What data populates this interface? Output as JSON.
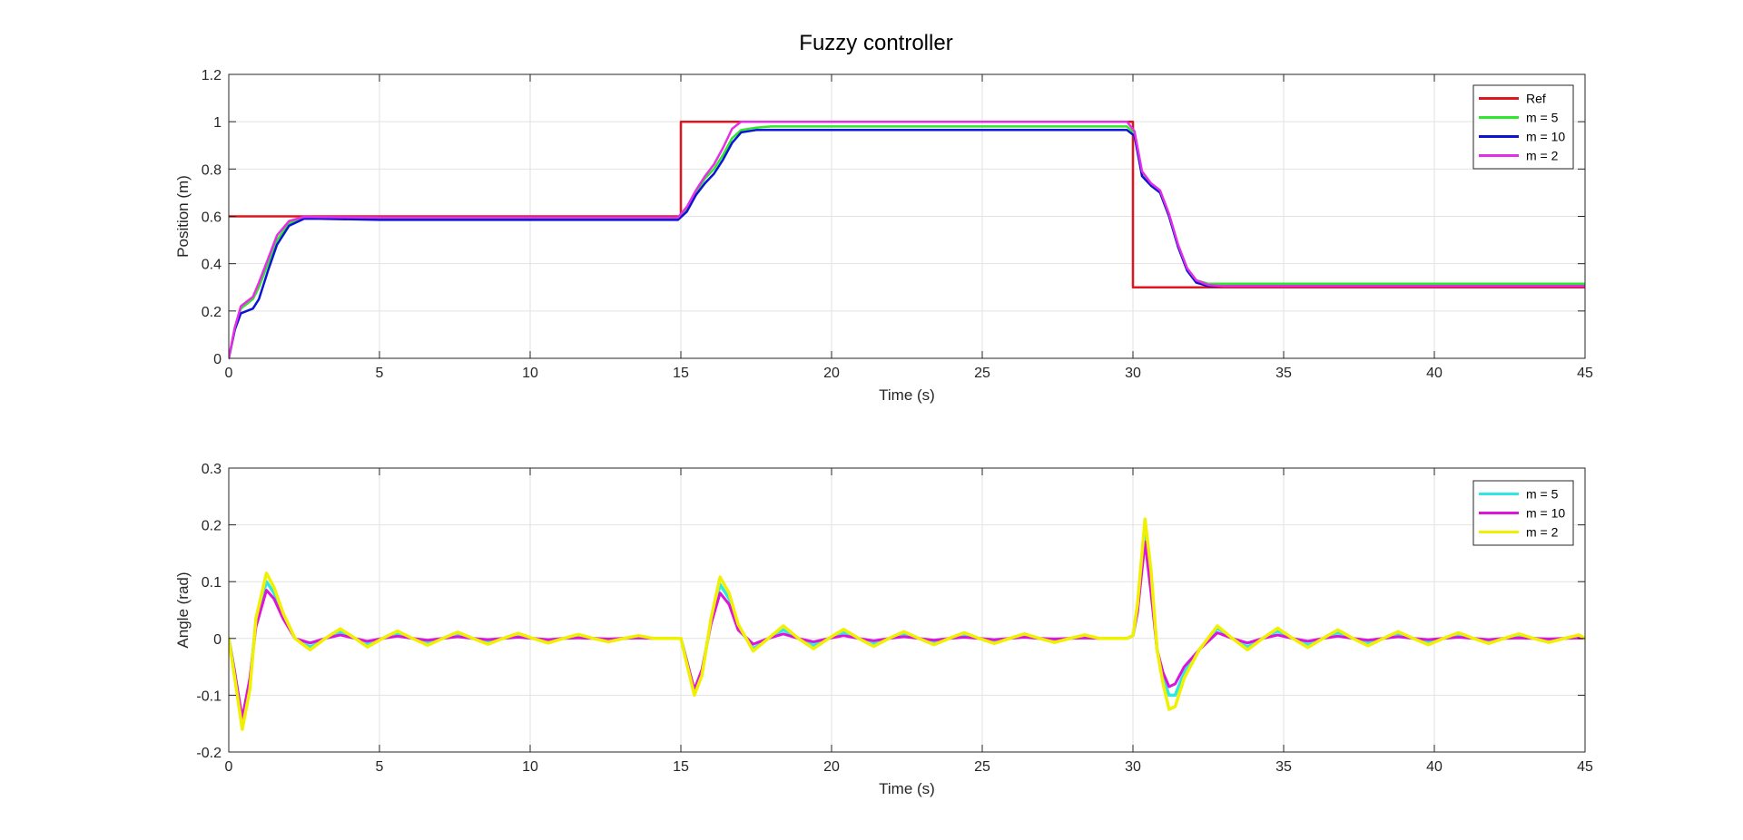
{
  "figure": {
    "title": "Fuzzy controller"
  },
  "chart_data": [
    {
      "type": "line",
      "title": "Fuzzy controller",
      "xlabel": "Time (s)",
      "ylabel": "Position (m)",
      "xlim": [
        0,
        45
      ],
      "ylim": [
        0,
        1.2
      ],
      "xticks": [
        0,
        5,
        10,
        15,
        20,
        25,
        30,
        35,
        40,
        45
      ],
      "yticks": [
        0,
        0.2,
        0.4,
        0.6,
        0.8,
        1,
        1.2
      ],
      "xtick_labels": [
        "0",
        "5",
        "10",
        "15",
        "20",
        "25",
        "30",
        "35",
        "40",
        "45"
      ],
      "ytick_labels": [
        "0",
        "0.2",
        "0.4",
        "0.6",
        "0.8",
        "1",
        "1.2"
      ],
      "grid": true,
      "legend_position": "top-right",
      "series": [
        {
          "name": "Ref",
          "color": "#e0161e",
          "x": [
            0,
            15,
            15,
            30,
            30,
            45
          ],
          "y": [
            0.6,
            0.6,
            1.0,
            1.0,
            0.3,
            0.3
          ]
        },
        {
          "name": "m = 5",
          "color": "#2ee82e",
          "x": [
            0,
            0.2,
            0.4,
            0.6,
            0.8,
            1.0,
            1.3,
            1.6,
            2.0,
            2.5,
            3,
            5,
            10,
            14.9,
            15.2,
            15.5,
            15.8,
            16.1,
            16.4,
            16.7,
            17,
            17.5,
            18,
            20,
            25,
            29.8,
            30.05,
            30.3,
            30.6,
            30.9,
            31.2,
            31.5,
            31.8,
            32.1,
            32.5,
            33,
            35,
            40,
            45
          ],
          "y": [
            0.0,
            0.12,
            0.21,
            0.23,
            0.25,
            0.3,
            0.4,
            0.5,
            0.57,
            0.595,
            0.593,
            0.59,
            0.59,
            0.59,
            0.63,
            0.7,
            0.76,
            0.8,
            0.86,
            0.93,
            0.965,
            0.975,
            0.98,
            0.98,
            0.98,
            0.98,
            0.95,
            0.78,
            0.73,
            0.7,
            0.6,
            0.47,
            0.38,
            0.33,
            0.315,
            0.315,
            0.315,
            0.315,
            0.315
          ]
        },
        {
          "name": "m = 10",
          "color": "#0a14d2",
          "x": [
            0,
            0.2,
            0.4,
            0.6,
            0.8,
            1.0,
            1.3,
            1.6,
            2.0,
            2.5,
            3,
            5,
            10,
            14.9,
            15.2,
            15.5,
            15.8,
            16.1,
            16.4,
            16.7,
            17,
            17.5,
            18,
            20,
            25,
            29.8,
            30.05,
            30.3,
            30.6,
            30.9,
            31.2,
            31.5,
            31.8,
            32.1,
            32.5,
            33,
            35,
            40,
            45
          ],
          "y": [
            0.0,
            0.12,
            0.19,
            0.2,
            0.21,
            0.25,
            0.37,
            0.48,
            0.56,
            0.59,
            0.59,
            0.585,
            0.585,
            0.585,
            0.62,
            0.69,
            0.74,
            0.78,
            0.84,
            0.91,
            0.955,
            0.965,
            0.965,
            0.965,
            0.965,
            0.965,
            0.94,
            0.77,
            0.73,
            0.7,
            0.6,
            0.47,
            0.37,
            0.32,
            0.305,
            0.305,
            0.305,
            0.305,
            0.305
          ]
        },
        {
          "name": "m = 2",
          "color": "#e62ee6",
          "x": [
            0,
            0.2,
            0.4,
            0.6,
            0.8,
            1.0,
            1.3,
            1.6,
            2.0,
            2.5,
            3,
            5,
            10,
            14.9,
            15.2,
            15.5,
            15.8,
            16.1,
            16.4,
            16.7,
            17,
            17.5,
            18,
            20,
            25,
            29.8,
            30.05,
            30.3,
            30.6,
            30.9,
            31.2,
            31.5,
            31.8,
            32.1,
            32.5,
            33,
            35,
            40,
            45
          ],
          "y": [
            0.0,
            0.13,
            0.22,
            0.24,
            0.26,
            0.32,
            0.42,
            0.52,
            0.58,
            0.598,
            0.597,
            0.595,
            0.595,
            0.595,
            0.64,
            0.71,
            0.77,
            0.82,
            0.89,
            0.97,
            1.0,
            1.0,
            1.0,
            1.0,
            1.0,
            1.0,
            0.96,
            0.79,
            0.74,
            0.71,
            0.61,
            0.48,
            0.38,
            0.33,
            0.31,
            0.305,
            0.305,
            0.305,
            0.305
          ]
        }
      ]
    },
    {
      "type": "line",
      "xlabel": "Time (s)",
      "ylabel": "Angle (rad)",
      "xlim": [
        0,
        45
      ],
      "ylim": [
        -0.2,
        0.3
      ],
      "xticks": [
        0,
        5,
        10,
        15,
        20,
        25,
        30,
        35,
        40,
        45
      ],
      "yticks": [
        -0.2,
        -0.1,
        0,
        0.1,
        0.2,
        0.3
      ],
      "xtick_labels": [
        "0",
        "5",
        "10",
        "15",
        "20",
        "25",
        "30",
        "35",
        "40",
        "45"
      ],
      "ytick_labels": [
        "-0.2",
        "-0.1",
        "0",
        "0.1",
        "0.2",
        "0.3"
      ],
      "grid": true,
      "legend_position": "top-right",
      "series": [
        {
          "name": "m = 5",
          "color": "#30e6e6",
          "x": [
            0,
            0.2,
            0.45,
            0.7,
            0.9,
            1.25,
            1.5,
            1.8,
            2.2,
            2.7,
            3.2,
            3.7,
            4.2,
            4.6,
            5.1,
            5.6,
            6.1,
            6.6,
            7.1,
            7.6,
            8.1,
            8.6,
            9.1,
            9.6,
            10.1,
            10.6,
            11.1,
            11.6,
            12.1,
            12.6,
            13.1,
            13.6,
            14.1,
            14.6,
            15.0,
            15.2,
            15.45,
            15.7,
            16.0,
            16.3,
            16.6,
            16.9,
            17.4,
            17.9,
            18.4,
            18.9,
            19.4,
            19.9,
            20.4,
            20.9,
            21.4,
            21.9,
            22.4,
            22.9,
            23.4,
            23.9,
            24.4,
            24.9,
            25.4,
            25.9,
            26.4,
            26.9,
            27.4,
            27.9,
            28.4,
            28.9,
            29.4,
            29.8,
            30.0,
            30.15,
            30.4,
            30.6,
            30.8,
            31.0,
            31.2,
            31.4,
            31.7,
            32.2,
            32.8,
            33.3,
            33.8,
            34.3,
            34.8,
            35.3,
            35.8,
            36.3,
            36.8,
            37.3,
            37.8,
            38.3,
            38.8,
            39.3,
            39.8,
            40.3,
            40.8,
            41.3,
            41.8,
            42.3,
            42.8,
            43.3,
            43.8,
            44.3,
            44.8,
            45
          ],
          "y": [
            0,
            -0.06,
            -0.15,
            -0.08,
            0.03,
            0.1,
            0.08,
            0.04,
            0.0,
            -0.015,
            0.0,
            0.012,
            0.0,
            -0.01,
            0.0,
            0.009,
            0.0,
            -0.007,
            0.0,
            0.006,
            0.0,
            -0.005,
            0.0,
            0.005,
            0.0,
            -0.004,
            0.0,
            0.004,
            0.0,
            -0.003,
            0.0,
            0.003,
            0.0,
            0.0,
            0.0,
            -0.04,
            -0.095,
            -0.06,
            0.03,
            0.095,
            0.07,
            0.02,
            -0.018,
            0.0,
            0.015,
            0.0,
            -0.012,
            0.0,
            0.011,
            0.0,
            -0.009,
            0.0,
            0.008,
            0.0,
            -0.007,
            0.0,
            0.006,
            0.0,
            -0.005,
            0.0,
            0.005,
            0.0,
            -0.004,
            0.0,
            0.004,
            0.0,
            0.0,
            0.0,
            0.005,
            0.05,
            0.19,
            0.1,
            -0.02,
            -0.07,
            -0.1,
            -0.1,
            -0.06,
            -0.02,
            0.018,
            0.0,
            -0.015,
            0.0,
            0.013,
            0.0,
            -0.011,
            0.0,
            0.01,
            0.0,
            -0.008,
            0.0,
            0.007,
            0.0,
            -0.006,
            0.0,
            0.005,
            0.0,
            -0.004,
            0.0,
            0.004,
            0.0,
            -0.003,
            0.0,
            0.003,
            0.0
          ]
        },
        {
          "name": "m = 10",
          "color": "#dc14dc",
          "x": [
            0,
            0.2,
            0.45,
            0.7,
            0.9,
            1.25,
            1.5,
            1.8,
            2.2,
            2.7,
            3.2,
            3.7,
            4.2,
            4.6,
            5.1,
            5.6,
            6.1,
            6.6,
            7.1,
            7.6,
            8.1,
            8.6,
            9.1,
            9.6,
            10.1,
            10.6,
            11.1,
            11.6,
            12.1,
            12.6,
            13.1,
            13.6,
            14.1,
            14.6,
            15.0,
            15.2,
            15.45,
            15.7,
            16.0,
            16.3,
            16.6,
            16.9,
            17.4,
            17.9,
            18.4,
            18.9,
            19.4,
            19.9,
            20.4,
            20.9,
            21.4,
            21.9,
            22.4,
            22.9,
            23.4,
            23.9,
            24.4,
            24.9,
            25.4,
            25.9,
            26.4,
            26.9,
            27.4,
            27.9,
            28.4,
            28.9,
            29.4,
            29.8,
            30.0,
            30.15,
            30.4,
            30.6,
            30.8,
            31.0,
            31.2,
            31.4,
            31.7,
            32.2,
            32.8,
            33.3,
            33.8,
            34.3,
            34.8,
            35.3,
            35.8,
            36.3,
            36.8,
            37.3,
            37.8,
            38.3,
            38.8,
            39.3,
            39.8,
            40.3,
            40.8,
            41.3,
            41.8,
            42.3,
            42.8,
            43.3,
            43.8,
            44.3,
            44.8,
            45
          ],
          "y": [
            0,
            -0.06,
            -0.14,
            -0.07,
            0.02,
            0.085,
            0.07,
            0.035,
            0.0,
            -0.008,
            0.0,
            0.006,
            0.0,
            -0.005,
            0.0,
            0.004,
            0.0,
            -0.003,
            0.0,
            0.003,
            0.0,
            -0.002,
            0.0,
            0.002,
            0.0,
            -0.002,
            0.0,
            0.001,
            0.0,
            -0.001,
            0.0,
            0.001,
            0.0,
            0.0,
            0.0,
            -0.04,
            -0.09,
            -0.055,
            0.025,
            0.08,
            0.06,
            0.015,
            -0.01,
            0.0,
            0.008,
            0.0,
            -0.006,
            0.0,
            0.005,
            0.0,
            -0.004,
            0.0,
            0.003,
            0.0,
            -0.003,
            0.0,
            0.002,
            0.0,
            -0.002,
            0.0,
            0.002,
            0.0,
            -0.001,
            0.0,
            0.001,
            0.0,
            0.0,
            0.0,
            0.005,
            0.045,
            0.17,
            0.08,
            -0.02,
            -0.06,
            -0.085,
            -0.08,
            -0.05,
            -0.02,
            0.01,
            0.0,
            -0.008,
            0.0,
            0.006,
            0.0,
            -0.005,
            0.0,
            0.004,
            0.0,
            -0.003,
            0.0,
            0.003,
            0.0,
            -0.002,
            0.0,
            0.002,
            0.0,
            -0.002,
            0.0,
            0.001,
            0.0,
            -0.001,
            0.0,
            0.001,
            0.0
          ]
        },
        {
          "name": "m = 2",
          "color": "#f0f000",
          "x": [
            0,
            0.2,
            0.45,
            0.7,
            0.9,
            1.25,
            1.5,
            1.8,
            2.2,
            2.7,
            3.2,
            3.7,
            4.2,
            4.6,
            5.1,
            5.6,
            6.1,
            6.6,
            7.1,
            7.6,
            8.1,
            8.6,
            9.1,
            9.6,
            10.1,
            10.6,
            11.1,
            11.6,
            12.1,
            12.6,
            13.1,
            13.6,
            14.1,
            14.6,
            15.0,
            15.2,
            15.45,
            15.7,
            16.0,
            16.3,
            16.6,
            16.9,
            17.4,
            17.9,
            18.4,
            18.9,
            19.4,
            19.9,
            20.4,
            20.9,
            21.4,
            21.9,
            22.4,
            22.9,
            23.4,
            23.9,
            24.4,
            24.9,
            25.4,
            25.9,
            26.4,
            26.9,
            27.4,
            27.9,
            28.4,
            28.9,
            29.4,
            29.8,
            30.0,
            30.15,
            30.4,
            30.6,
            30.8,
            31.0,
            31.2,
            31.4,
            31.7,
            32.2,
            32.8,
            33.3,
            33.8,
            34.3,
            34.8,
            35.3,
            35.8,
            36.3,
            36.8,
            37.3,
            37.8,
            38.3,
            38.8,
            39.3,
            39.8,
            40.3,
            40.8,
            41.3,
            41.8,
            42.3,
            42.8,
            43.3,
            43.8,
            44.3,
            44.8,
            45
          ],
          "y": [
            0,
            -0.07,
            -0.16,
            -0.09,
            0.035,
            0.115,
            0.09,
            0.045,
            0.0,
            -0.02,
            0.0,
            0.017,
            0.0,
            -0.015,
            0.0,
            0.013,
            0.0,
            -0.012,
            0.0,
            0.011,
            0.0,
            -0.01,
            0.0,
            0.009,
            0.0,
            -0.008,
            0.0,
            0.007,
            0.0,
            -0.006,
            0.0,
            0.005,
            0.0,
            0.0,
            0.0,
            -0.045,
            -0.1,
            -0.065,
            0.035,
            0.108,
            0.08,
            0.025,
            -0.022,
            0.0,
            0.022,
            0.0,
            -0.018,
            0.0,
            0.016,
            0.0,
            -0.014,
            0.0,
            0.012,
            0.0,
            -0.011,
            0.0,
            0.01,
            0.0,
            -0.009,
            0.0,
            0.008,
            0.0,
            -0.007,
            0.0,
            0.006,
            0.0,
            0.0,
            0.0,
            0.005,
            0.06,
            0.21,
            0.12,
            -0.02,
            -0.08,
            -0.125,
            -0.12,
            -0.07,
            -0.02,
            0.022,
            0.0,
            -0.02,
            0.0,
            0.018,
            0.0,
            -0.016,
            0.0,
            0.015,
            0.0,
            -0.013,
            0.0,
            0.012,
            0.0,
            -0.011,
            0.0,
            0.01,
            0.0,
            -0.009,
            0.0,
            0.008,
            0.0,
            -0.007,
            0.0,
            0.006,
            0.0
          ]
        }
      ]
    }
  ]
}
